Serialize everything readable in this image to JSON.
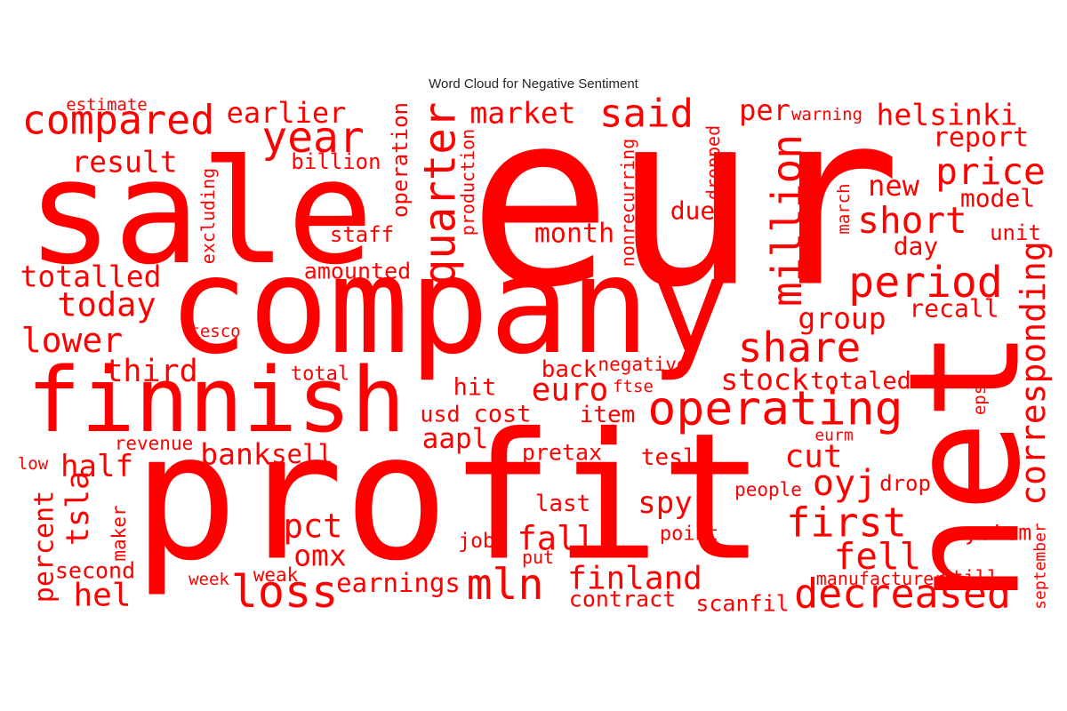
{
  "chart_data": {
    "type": "wordcloud",
    "title": "Word Cloud for Negative Sentiment",
    "color": "#ff0000",
    "words": [
      "eur",
      "profit",
      "company",
      "sale",
      "net",
      "finnish",
      "operating",
      "million",
      "quarter",
      "corresponding",
      "compared",
      "year",
      "earlier",
      "market",
      "said",
      "per",
      "warning",
      "helsinki",
      "report",
      "price",
      "new",
      "model",
      "short",
      "unit",
      "day",
      "period",
      "recall",
      "group",
      "share",
      "stock",
      "totaled",
      "estimate",
      "result",
      "billion",
      "excluding",
      "operation",
      "production",
      "nonrecurring",
      "dropped",
      "march",
      "due",
      "staff",
      "month",
      "totalled",
      "amounted",
      "today",
      "lower",
      "tesco",
      "third",
      "total",
      "back",
      "negative",
      "hit",
      "euro",
      "ftse",
      "usd",
      "cost",
      "item",
      "aapl",
      "revenue",
      "eps",
      "eurm",
      "low",
      "half",
      "bank",
      "sell",
      "pretax",
      "tesla",
      "cut",
      "oyj",
      "people",
      "drop",
      "tsla",
      "percent",
      "maker",
      "second",
      "hel",
      "pct",
      "omx",
      "last",
      "spy",
      "fall",
      "first",
      "fell",
      "system",
      "september",
      "point",
      "job",
      "put",
      "mln",
      "finland",
      "earnings",
      "loss",
      "week",
      "weak",
      "contract",
      "scanfil",
      "decreased",
      "manufacturer",
      "still"
    ]
  }
}
